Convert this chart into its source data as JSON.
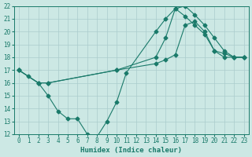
{
  "xlabel": "Humidex (Indice chaleur)",
  "bg_color": "#cce8e4",
  "grid_color": "#aacccc",
  "line_color": "#1a7a6a",
  "xlim": [
    -0.5,
    23.5
  ],
  "ylim": [
    12,
    22
  ],
  "xticks": [
    0,
    1,
    2,
    3,
    4,
    5,
    6,
    7,
    8,
    9,
    10,
    11,
    12,
    13,
    14,
    15,
    16,
    17,
    18,
    19,
    20,
    21,
    22,
    23
  ],
  "yticks": [
    12,
    13,
    14,
    15,
    16,
    17,
    18,
    19,
    20,
    21,
    22
  ],
  "line1_x": [
    0,
    1,
    2,
    3,
    4,
    5,
    6,
    7,
    8,
    9,
    10,
    11,
    14,
    15,
    16,
    17,
    18,
    19,
    20,
    21,
    22,
    23
  ],
  "line1_y": [
    17,
    16.5,
    16,
    15,
    13.8,
    13.2,
    13.2,
    12.0,
    11.8,
    13.0,
    14.5,
    16.8,
    20.0,
    21.0,
    21.8,
    21.2,
    20.5,
    19.8,
    18.5,
    18.3,
    18.0,
    18.0
  ],
  "line2_x": [
    0,
    2,
    3,
    10,
    14,
    15,
    16,
    17,
    18,
    19,
    20,
    21,
    22,
    23
  ],
  "line2_y": [
    17,
    16.0,
    16.0,
    17.0,
    18.0,
    19.5,
    21.8,
    22.0,
    21.3,
    20.5,
    19.5,
    18.5,
    18.0,
    18.0
  ],
  "line3_x": [
    0,
    2,
    3,
    10,
    14,
    15,
    16,
    17,
    18,
    19,
    20,
    21,
    22,
    23
  ],
  "line3_y": [
    17,
    16.0,
    16.0,
    17.0,
    17.5,
    17.8,
    18.2,
    20.5,
    20.8,
    20.0,
    18.5,
    18.0,
    18.0,
    18.0
  ]
}
